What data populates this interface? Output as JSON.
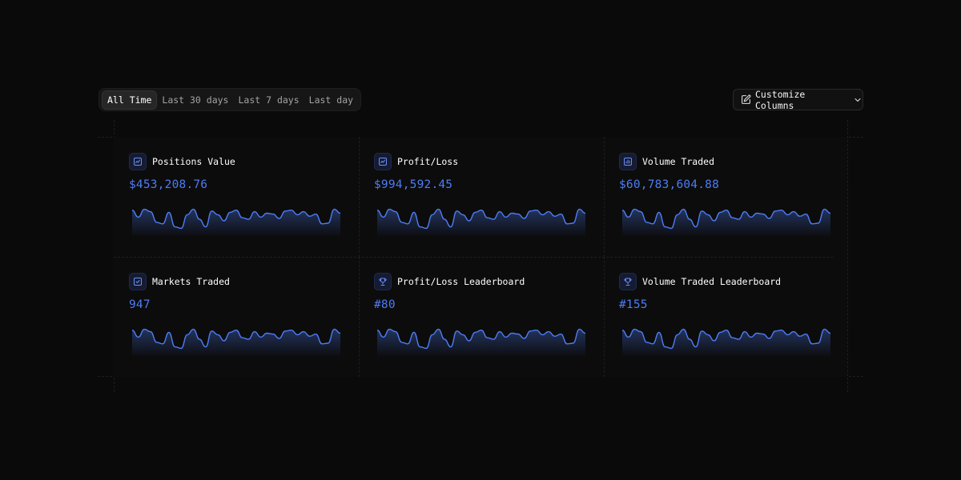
{
  "filters": {
    "tabs": [
      {
        "label": "All Time",
        "active": true
      },
      {
        "label": "Last 30 days",
        "active": false
      },
      {
        "label": "Last 7 days",
        "active": false
      },
      {
        "label": "Last day",
        "active": false
      }
    ]
  },
  "toolbar": {
    "customize_label": "Customize Columns",
    "customize_icon": "edit-square-icon",
    "dropdown_icon": "chevron-down-icon"
  },
  "colors": {
    "accent": "#4d7cf5",
    "background": "#0a0a0a"
  },
  "cards": [
    {
      "title": "Positions Value",
      "value": "$453,208.76",
      "icon": "trend-chart-icon"
    },
    {
      "title": "Profit/Loss",
      "value": "$994,592.45",
      "icon": "trend-chart-icon"
    },
    {
      "title": "Volume Traded",
      "value": "$60,783,604.88",
      "icon": "bar-chart-icon"
    },
    {
      "title": "Markets Traded",
      "value": "947",
      "icon": "check-square-icon"
    },
    {
      "title": "Profit/Loss Leaderboard",
      "value": "#80",
      "icon": "trophy-icon"
    },
    {
      "title": "Volume Traded Leaderboard",
      "value": "#155",
      "icon": "trophy-icon"
    }
  ],
  "sparkline": [
    0.85,
    0.62,
    0.88,
    0.8,
    0.45,
    0.4,
    0.78,
    0.3,
    0.25,
    0.7,
    0.88,
    0.55,
    0.3,
    0.82,
    0.7,
    0.5,
    0.78,
    0.85,
    0.6,
    0.55,
    0.8,
    0.62,
    0.75,
    0.72,
    0.58,
    0.82,
    0.85,
    0.7,
    0.8,
    0.65,
    0.72,
    0.4,
    0.42,
    0.88,
    0.75
  ]
}
